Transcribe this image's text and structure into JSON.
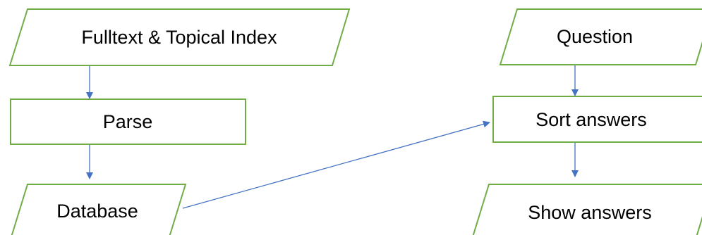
{
  "diagram": {
    "nodes": {
      "fulltext": {
        "label": "Fulltext & Topical Index",
        "shape": "parallelogram"
      },
      "parse": {
        "label": "Parse",
        "shape": "rectangle"
      },
      "database": {
        "label": "Database",
        "shape": "parallelogram"
      },
      "question": {
        "label": "Question",
        "shape": "parallelogram"
      },
      "sort": {
        "label": "Sort answers",
        "shape": "rectangle"
      },
      "show": {
        "label": "Show answers",
        "shape": "parallelogram"
      }
    },
    "edges": [
      {
        "from": "fulltext",
        "to": "parse"
      },
      {
        "from": "parse",
        "to": "database"
      },
      {
        "from": "database",
        "to": "sort"
      },
      {
        "from": "question",
        "to": "sort"
      },
      {
        "from": "sort",
        "to": "show"
      }
    ],
    "colors": {
      "node_stroke": "#70ad47",
      "node_fill": "#ffffff",
      "arrow": "#4472c4",
      "text": "#000000"
    }
  }
}
